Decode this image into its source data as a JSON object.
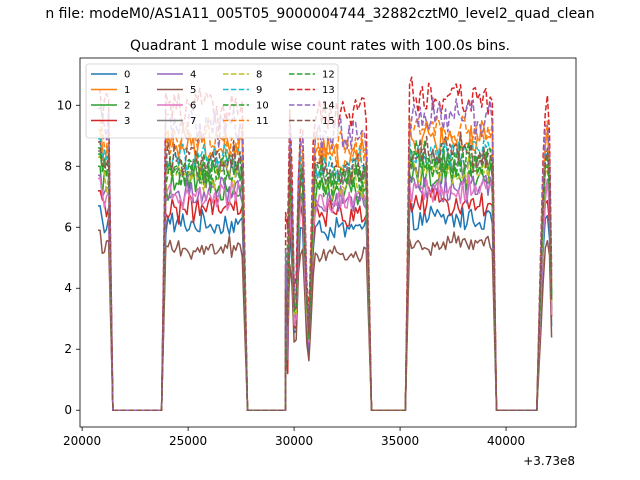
{
  "figure": {
    "suptitle": "n file: modeM0/AS1A11_005T05_9000004744_32882cztM0_level2_quad_clean"
  },
  "chart_data": {
    "type": "line",
    "title": "Quadrant 1 module wise count rates with 100.0s bins.",
    "xlabel": "",
    "ylabel": "",
    "x_offset_label": "+3.73e8",
    "xlim": [
      19900,
      43300
    ],
    "ylim": [
      -0.55,
      11.55
    ],
    "xticks": [
      20000,
      25000,
      30000,
      35000,
      40000
    ],
    "xtick_labels": [
      "20000",
      "25000",
      "30000",
      "35000",
      "40000"
    ],
    "yticks": [
      0,
      2,
      4,
      6,
      8,
      10
    ],
    "ytick_labels": [
      "0",
      "2",
      "4",
      "6",
      "8",
      "10"
    ],
    "grid": false,
    "legend_position": "upper-left",
    "legend_columns": 4,
    "bin_seconds": 100,
    "segments": [
      {
        "on": [
          20750,
          21250
        ],
        "ramp_down_end": 21450
      },
      {
        "ramp_up_start": 23750,
        "on": [
          23950,
          27600
        ],
        "ramp_down_end": 27800
      },
      {
        "ramp_up_start": 29600,
        "on": [
          29600,
          33450
        ],
        "ramp_down_end": 33650,
        "dips": [
          [
            29850,
            30250
          ],
          [
            30400,
            30950
          ]
        ]
      },
      {
        "ramp_up_start": 35250,
        "on": [
          35450,
          39350
        ],
        "ramp_down_end": 39550
      },
      {
        "ramp_up_start": 41450,
        "on": [
          41650,
          42200
        ]
      }
    ],
    "series": [
      {
        "name": "0",
        "color": "#1f77b4",
        "style": "solid",
        "level": 6.1
      },
      {
        "name": "1",
        "color": "#ff7f0e",
        "style": "solid",
        "level": 8.6
      },
      {
        "name": "2",
        "color": "#2ca02c",
        "style": "solid",
        "level": 7.4
      },
      {
        "name": "3",
        "color": "#d62728",
        "style": "solid",
        "level": 6.6
      },
      {
        "name": "4",
        "color": "#9467bd",
        "style": "solid",
        "level": 7.1
      },
      {
        "name": "5",
        "color": "#8c564b",
        "style": "solid",
        "level": 5.3
      },
      {
        "name": "6",
        "color": "#e377c2",
        "style": "solid",
        "level": 7.0
      },
      {
        "name": "7",
        "color": "#7f7f7f",
        "style": "solid",
        "level": 7.9
      },
      {
        "name": "8",
        "color": "#bcbd22",
        "style": "dashed",
        "level": 7.7
      },
      {
        "name": "9",
        "color": "#17becf",
        "style": "dashed",
        "level": 8.3
      },
      {
        "name": "10",
        "color": "#2ca02c",
        "style": "dashed",
        "level": 8.0
      },
      {
        "name": "11",
        "color": "#ff7f0e",
        "style": "dashed",
        "level": 8.9
      },
      {
        "name": "12",
        "color": "#2ca02c",
        "style": "dashed",
        "level": 7.8
      },
      {
        "name": "13",
        "color": "#d62728",
        "style": "dashed",
        "level": 9.9
      },
      {
        "name": "14",
        "color": "#9467bd",
        "style": "dashed",
        "level": 9.3
      },
      {
        "name": "15",
        "color": "#8c564b",
        "style": "dashed",
        "level": 8.2
      }
    ]
  }
}
